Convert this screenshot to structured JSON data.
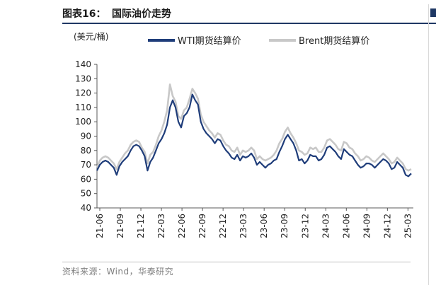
{
  "figure": {
    "label": "图表16：",
    "title": "国际油价走势",
    "unit": "(美元/桶)",
    "source": "资料来源：Wind，华泰研究"
  },
  "chart_data": {
    "type": "line",
    "title": "国际油价走势",
    "xlabel": "",
    "ylabel": "(美元/桶)",
    "ylim": [
      40,
      140
    ],
    "yticks": [
      40,
      50,
      60,
      70,
      80,
      90,
      100,
      110,
      120,
      130,
      140
    ],
    "grid": false,
    "legend": "top",
    "x_start": "21-06",
    "x_end": "25-05",
    "x_ticks": [
      "21-06",
      "21-09",
      "21-12",
      "22-03",
      "22-06",
      "22-09",
      "22-12",
      "23-03",
      "23-06",
      "23-09",
      "23-12",
      "24-03",
      "24-06",
      "24-09",
      "24-12",
      "25-03"
    ],
    "series": [
      {
        "name": "WTI期货结算价",
        "color": "#1f3d7a",
        "values": [
          66,
          70,
          72,
          73,
          72,
          70,
          68,
          63,
          69,
          72,
          74,
          76,
          80,
          83,
          84,
          83,
          80,
          76,
          66,
          72,
          75,
          80,
          85,
          88,
          92,
          98,
          110,
          115,
          110,
          100,
          96,
          104,
          106,
          110,
          119,
          115,
          112,
          100,
          95,
          92,
          90,
          88,
          85,
          88,
          87,
          83,
          80,
          78,
          75,
          74,
          77,
          73,
          76,
          75,
          76,
          78,
          75,
          70,
          72,
          70,
          68,
          70,
          71,
          73,
          74,
          79,
          83,
          88,
          91,
          88,
          85,
          80,
          73,
          74,
          71,
          73,
          77,
          76,
          76,
          73,
          74,
          77,
          82,
          83,
          81,
          79,
          76,
          74,
          81,
          79,
          77,
          76,
          73,
          70,
          68,
          69,
          71,
          71,
          70,
          68,
          70,
          72,
          74,
          73,
          71,
          67,
          68,
          72,
          70,
          68,
          63,
          62,
          64
        ]
      },
      {
        "name": "Brent期货结算价",
        "color": "#c8c8c8",
        "values": [
          68,
          73,
          75,
          76,
          75,
          73,
          71,
          67,
          72,
          75,
          78,
          80,
          84,
          86,
          87,
          86,
          82,
          79,
          71,
          77,
          79,
          84,
          90,
          94,
          100,
          108,
          126,
          118,
          114,
          104,
          102,
          108,
          110,
          116,
          123,
          120,
          116,
          105,
          100,
          97,
          94,
          92,
          89,
          92,
          91,
          87,
          84,
          83,
          80,
          79,
          82,
          77,
          80,
          79,
          80,
          82,
          80,
          74,
          76,
          74,
          73,
          74,
          75,
          77,
          80,
          85,
          88,
          93,
          96,
          92,
          89,
          85,
          80,
          79,
          77,
          78,
          82,
          81,
          82,
          79,
          79,
          82,
          87,
          88,
          86,
          84,
          81,
          80,
          86,
          85,
          82,
          81,
          78,
          76,
          73,
          74,
          76,
          75,
          73,
          72,
          74,
          76,
          78,
          76,
          74,
          71,
          72,
          75,
          73,
          71,
          67,
          66,
          67
        ]
      }
    ]
  }
}
